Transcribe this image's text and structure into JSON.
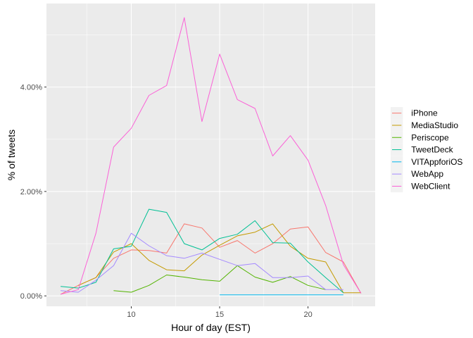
{
  "chart_data": {
    "type": "line",
    "xlabel": "Hour of day (EST)",
    "ylabel": "% of tweets",
    "xlim": [
      5.2,
      23.8
    ],
    "ylim": [
      -0.2,
      5.6
    ],
    "x_ticks": [
      10,
      15,
      20
    ],
    "x_tick_labels": [
      "10",
      "15",
      "20"
    ],
    "y_ticks": [
      0,
      2,
      4
    ],
    "y_tick_labels": [
      "0.00%",
      "2.00%",
      "4.00%"
    ],
    "grid": true,
    "legend_position": "right",
    "series": [
      {
        "name": "iPhone",
        "color": "#F8766D",
        "points": [
          [
            6,
            0.03
          ],
          [
            7,
            0.2
          ],
          [
            8,
            0.35
          ],
          [
            9,
            0.72
          ],
          [
            10,
            0.88
          ],
          [
            11,
            0.87
          ],
          [
            12,
            0.82
          ],
          [
            13,
            1.38
          ],
          [
            14,
            1.3
          ],
          [
            15,
            0.93
          ],
          [
            16,
            1.06
          ],
          [
            17,
            0.82
          ],
          [
            18,
            1.0
          ],
          [
            19,
            1.28
          ],
          [
            20,
            1.32
          ],
          [
            21,
            0.83
          ],
          [
            22,
            0.65
          ],
          [
            23,
            0.05
          ]
        ]
      },
      {
        "name": "MediaStudio",
        "color": "#C49A00",
        "points": [
          [
            7,
            0.2
          ],
          [
            8,
            0.35
          ],
          [
            9,
            0.84
          ],
          [
            10,
            1.0
          ],
          [
            11,
            0.68
          ],
          [
            12,
            0.5
          ],
          [
            13,
            0.48
          ],
          [
            14,
            0.78
          ],
          [
            15,
            0.97
          ],
          [
            16,
            1.15
          ],
          [
            17,
            1.22
          ],
          [
            18,
            1.38
          ],
          [
            19,
            0.95
          ],
          [
            20,
            0.72
          ],
          [
            21,
            0.65
          ],
          [
            22,
            0.06
          ],
          [
            23,
            0.06
          ]
        ]
      },
      {
        "name": "Periscope",
        "color": "#53B400",
        "points": [
          [
            9,
            0.1
          ],
          [
            10,
            0.07
          ],
          [
            11,
            0.2
          ],
          [
            12,
            0.4
          ],
          [
            13,
            0.36
          ],
          [
            14,
            0.31
          ],
          [
            15,
            0.28
          ],
          [
            16,
            0.58
          ],
          [
            17,
            0.36
          ],
          [
            18,
            0.26
          ],
          [
            19,
            0.37
          ],
          [
            20,
            0.2
          ],
          [
            21,
            0.12
          ]
        ]
      },
      {
        "name": "TweetDeck",
        "color": "#00C094",
        "points": [
          [
            6,
            0.18
          ],
          [
            7,
            0.15
          ],
          [
            8,
            0.26
          ],
          [
            9,
            0.9
          ],
          [
            10,
            0.95
          ],
          [
            11,
            1.66
          ],
          [
            12,
            1.6
          ],
          [
            13,
            1.0
          ],
          [
            14,
            0.88
          ],
          [
            15,
            1.1
          ],
          [
            16,
            1.18
          ],
          [
            17,
            1.44
          ],
          [
            18,
            1.02
          ],
          [
            19,
            1.01
          ],
          [
            20,
            0.65
          ],
          [
            21,
            0.35
          ],
          [
            22,
            0.06
          ]
        ]
      },
      {
        "name": "VITAppforiOS",
        "color": "#00B6EB",
        "points": [
          [
            15,
            0.02
          ],
          [
            16,
            0.02
          ],
          [
            17,
            0.02
          ],
          [
            18,
            0.02
          ],
          [
            19,
            0.02
          ],
          [
            20,
            0.02
          ],
          [
            21,
            0.02
          ],
          [
            22,
            0.02
          ]
        ]
      },
      {
        "name": "WebApp",
        "color": "#A58AFF",
        "points": [
          [
            6,
            0.1
          ],
          [
            7,
            0.07
          ],
          [
            8,
            0.3
          ],
          [
            9,
            0.58
          ],
          [
            10,
            1.2
          ],
          [
            11,
            0.96
          ],
          [
            12,
            0.77
          ],
          [
            13,
            0.72
          ],
          [
            14,
            0.82
          ],
          [
            15,
            0.7
          ],
          [
            16,
            0.58
          ],
          [
            17,
            0.62
          ],
          [
            18,
            0.35
          ],
          [
            19,
            0.35
          ],
          [
            20,
            0.38
          ],
          [
            21,
            0.12
          ],
          [
            22,
            0.12
          ]
        ]
      },
      {
        "name": "WebClient",
        "color": "#FB61D7",
        "points": [
          [
            6,
            0.03
          ],
          [
            7,
            0.12
          ],
          [
            8,
            1.2
          ],
          [
            9,
            2.85
          ],
          [
            10,
            3.21
          ],
          [
            11,
            3.84
          ],
          [
            12,
            4.03
          ],
          [
            13,
            5.33
          ],
          [
            14,
            3.34
          ],
          [
            15,
            4.63
          ],
          [
            16,
            3.76
          ],
          [
            17,
            3.59
          ],
          [
            18,
            2.68
          ],
          [
            19,
            3.07
          ],
          [
            20,
            2.6
          ],
          [
            21,
            1.73
          ],
          [
            22,
            0.6
          ],
          [
            23,
            0.05
          ]
        ]
      }
    ]
  }
}
